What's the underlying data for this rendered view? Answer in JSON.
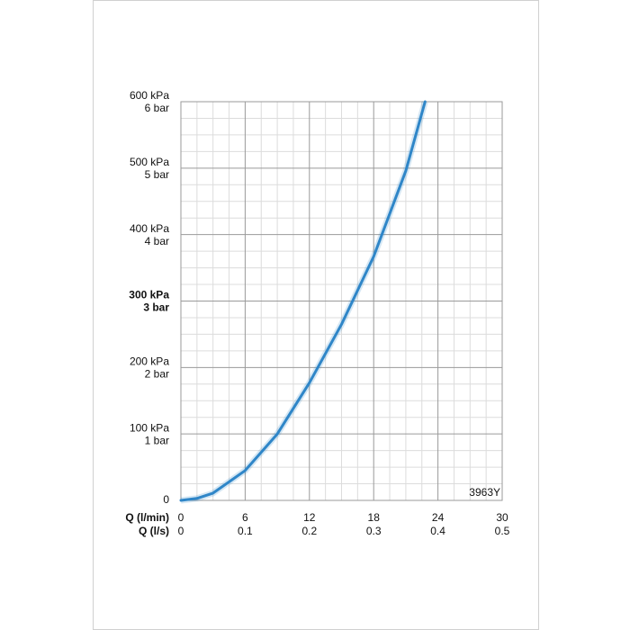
{
  "chart_data": {
    "type": "line",
    "xlabel": "Q (l/min)",
    "x2label": "Q (l/s)",
    "x": [
      0,
      1.5,
      3,
      6,
      9,
      12,
      15,
      18,
      21,
      22.8
    ],
    "series": [
      {
        "color": "#2f86c8",
        "values": [
          0,
          3,
          11,
          45,
          100,
          177,
          265,
          367,
          496,
          600
        ]
      }
    ],
    "xlim": [
      0,
      30
    ],
    "xticks": [
      0,
      6,
      12,
      18,
      24,
      30
    ],
    "x2lim": [
      0,
      0.5
    ],
    "x2ticks": [
      0,
      0.1,
      0.2,
      0.3,
      0.4,
      0.5
    ],
    "ylim": [
      0,
      600
    ],
    "yticks": [
      0,
      {
        "value": 100,
        "label": "100 kPa"
      },
      {
        "value": 200,
        "label": "200 kPa"
      },
      {
        "value": 300,
        "label": "300 kPa"
      },
      {
        "value": 400,
        "label": "400 kPa"
      },
      {
        "value": 500,
        "label": "500 kPa"
      },
      {
        "value": 600,
        "label": "600 kPa"
      }
    ],
    "y2lim": [
      0,
      6
    ],
    "y2ticks": [
      {
        "value": 1,
        "label": "1 bar"
      },
      {
        "value": 2,
        "label": "2 bar"
      },
      {
        "value": 3,
        "label": "3 bar"
      },
      {
        "value": 4,
        "label": "4 bar"
      },
      {
        "value": 5,
        "label": "5 bar"
      },
      {
        "value": 6,
        "label": "6 bar"
      }
    ],
    "bold_ytick": 300,
    "annotation": "3963Y",
    "grid": true
  }
}
